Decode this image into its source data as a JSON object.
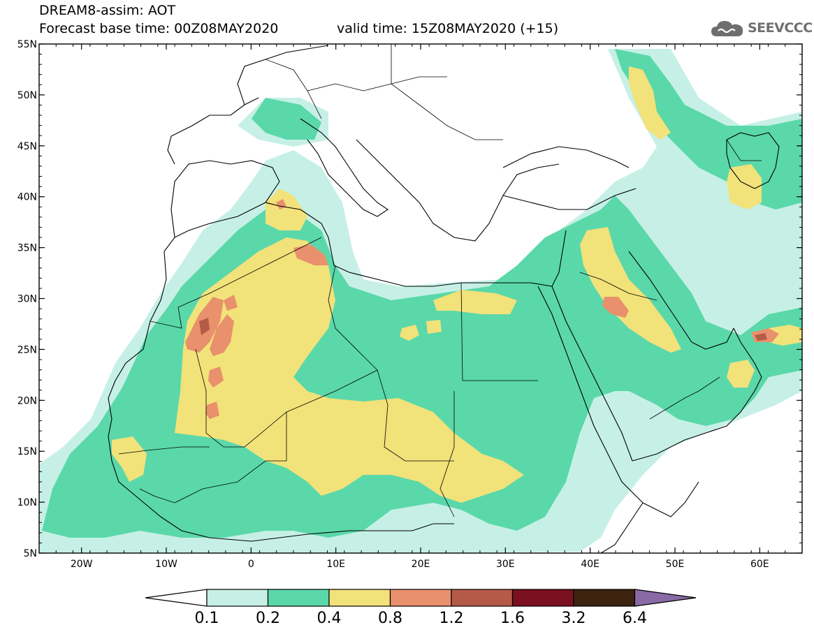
{
  "header": {
    "title_line1": "DREAM8-assim: AOT",
    "title_line2": "Forecast base time: 00Z08MAY2020",
    "valid_time": "valid time: 15Z08MAY2020 (+15)",
    "logo_text": "SEEVCCC",
    "logo_icon": "cloud-icon"
  },
  "map": {
    "lon_range": [
      -25,
      65
    ],
    "lat_range": [
      5,
      55
    ],
    "x_ticks": [
      {
        "lon": -20,
        "label": "20W"
      },
      {
        "lon": -10,
        "label": "10W"
      },
      {
        "lon": 0,
        "label": "0"
      },
      {
        "lon": 10,
        "label": "10E"
      },
      {
        "lon": 20,
        "label": "20E"
      },
      {
        "lon": 30,
        "label": "30E"
      },
      {
        "lon": 40,
        "label": "40E"
      },
      {
        "lon": 50,
        "label": "50E"
      },
      {
        "lon": 60,
        "label": "60E"
      }
    ],
    "y_ticks": [
      {
        "lat": 55,
        "label": "55N"
      },
      {
        "lat": 50,
        "label": "50N"
      },
      {
        "lat": 45,
        "label": "45N"
      },
      {
        "lat": 40,
        "label": "40N"
      },
      {
        "lat": 35,
        "label": "35N"
      },
      {
        "lat": 30,
        "label": "30N"
      },
      {
        "lat": 25,
        "label": "25N"
      },
      {
        "lat": 20,
        "label": "20N"
      },
      {
        "lat": 15,
        "label": "15N"
      },
      {
        "lat": 10,
        "label": "10N"
      },
      {
        "lat": 5,
        "label": "5N"
      }
    ],
    "colors": {
      "c01": "#c6f0e6",
      "c02": "#5ad8aa",
      "c04": "#f2e27a",
      "c08": "#e9906c",
      "c12": "#b45a46",
      "c16": "#7a1020",
      "c32": "#3d2410",
      "c64": "#8a6aa6"
    }
  },
  "colorbar": {
    "labels": [
      "0.1",
      "0.2",
      "0.4",
      "0.8",
      "1.2",
      "1.6",
      "3.2",
      "6.4"
    ],
    "colors": [
      "#c6f0e6",
      "#5ad8aa",
      "#f2e27a",
      "#e9906c",
      "#b45a46",
      "#7a1020",
      "#3d2410"
    ],
    "under_color": "#ffffff",
    "over_color": "#8a6aa6"
  }
}
